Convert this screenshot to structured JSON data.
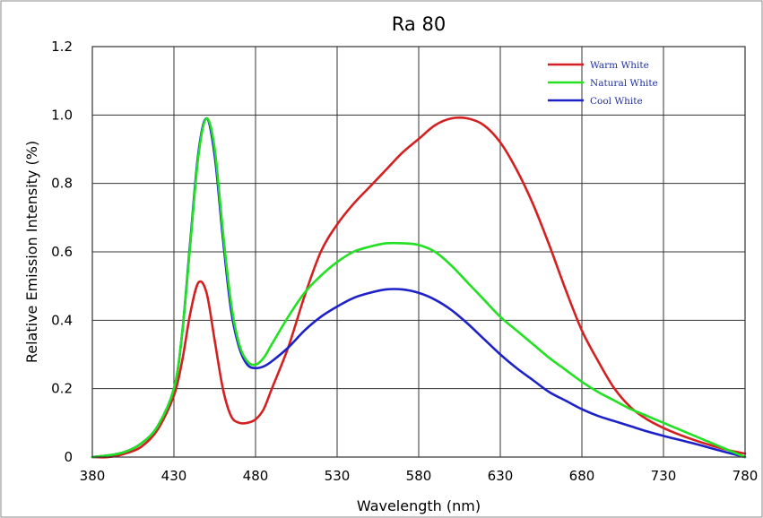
{
  "chart_data": {
    "type": "line",
    "title": "Ra 80",
    "xlabel": "Wavelength (nm)",
    "ylabel": "Relative Emission Intensity (%)",
    "xlim": [
      380,
      780
    ],
    "ylim": [
      0,
      1.2
    ],
    "x_ticks": [
      380,
      430,
      480,
      530,
      580,
      630,
      680,
      730,
      780
    ],
    "y_ticks": [
      0,
      0.2,
      0.4,
      0.6,
      0.8,
      1.0,
      1.2
    ],
    "y_tick_labels": [
      "0",
      "0.2",
      "0.4",
      "0.6",
      "0.8",
      "1.0",
      "1.2"
    ],
    "grid": true,
    "legend_position": "top-right",
    "series": [
      {
        "name": "Warm White",
        "color": "#d42020",
        "x": [
          380,
          390,
          400,
          410,
          420,
          430,
          435,
          440,
          445,
          450,
          455,
          460,
          465,
          470,
          475,
          480,
          485,
          490,
          500,
          510,
          520,
          530,
          540,
          550,
          560,
          570,
          580,
          590,
          600,
          610,
          620,
          630,
          640,
          650,
          660,
          670,
          680,
          690,
          700,
          710,
          720,
          730,
          740,
          750,
          760,
          770,
          780
        ],
        "y": [
          0.0,
          0.0,
          0.01,
          0.03,
          0.08,
          0.18,
          0.28,
          0.42,
          0.51,
          0.48,
          0.34,
          0.2,
          0.12,
          0.1,
          0.1,
          0.11,
          0.14,
          0.2,
          0.32,
          0.47,
          0.6,
          0.68,
          0.74,
          0.79,
          0.84,
          0.89,
          0.93,
          0.97,
          0.99,
          0.99,
          0.97,
          0.92,
          0.84,
          0.74,
          0.62,
          0.49,
          0.37,
          0.28,
          0.2,
          0.145,
          0.11,
          0.085,
          0.065,
          0.048,
          0.033,
          0.02,
          0.01
        ]
      },
      {
        "name": "Natural White",
        "color": "#22e022",
        "x": [
          380,
          390,
          400,
          410,
          420,
          430,
          435,
          440,
          445,
          450,
          455,
          460,
          465,
          470,
          475,
          480,
          485,
          490,
          500,
          510,
          520,
          530,
          540,
          550,
          560,
          570,
          580,
          590,
          600,
          610,
          620,
          630,
          640,
          650,
          660,
          670,
          680,
          690,
          700,
          710,
          720,
          730,
          740,
          750,
          760,
          770,
          780
        ],
        "y": [
          0.0,
          0.005,
          0.015,
          0.04,
          0.09,
          0.2,
          0.36,
          0.62,
          0.88,
          0.99,
          0.9,
          0.66,
          0.45,
          0.33,
          0.28,
          0.27,
          0.29,
          0.33,
          0.41,
          0.48,
          0.53,
          0.57,
          0.6,
          0.615,
          0.625,
          0.625,
          0.62,
          0.6,
          0.56,
          0.51,
          0.46,
          0.41,
          0.37,
          0.33,
          0.29,
          0.255,
          0.22,
          0.19,
          0.165,
          0.14,
          0.12,
          0.1,
          0.08,
          0.06,
          0.04,
          0.02,
          0.0
        ]
      },
      {
        "name": "Cool White",
        "color": "#1c22c8",
        "x": [
          380,
          390,
          400,
          410,
          420,
          430,
          435,
          440,
          445,
          450,
          455,
          460,
          465,
          470,
          475,
          480,
          485,
          490,
          500,
          510,
          520,
          530,
          540,
          550,
          560,
          570,
          580,
          590,
          600,
          610,
          620,
          630,
          640,
          650,
          660,
          670,
          680,
          690,
          700,
          710,
          720,
          730,
          740,
          750,
          760,
          770,
          780
        ],
        "y": [
          0.0,
          0.005,
          0.015,
          0.04,
          0.09,
          0.2,
          0.36,
          0.63,
          0.89,
          0.99,
          0.88,
          0.64,
          0.43,
          0.32,
          0.27,
          0.26,
          0.265,
          0.28,
          0.32,
          0.37,
          0.41,
          0.44,
          0.465,
          0.48,
          0.49,
          0.49,
          0.48,
          0.46,
          0.43,
          0.39,
          0.345,
          0.3,
          0.26,
          0.225,
          0.19,
          0.165,
          0.14,
          0.12,
          0.105,
          0.09,
          0.075,
          0.062,
          0.05,
          0.038,
          0.025,
          0.012,
          0.0
        ]
      }
    ]
  }
}
